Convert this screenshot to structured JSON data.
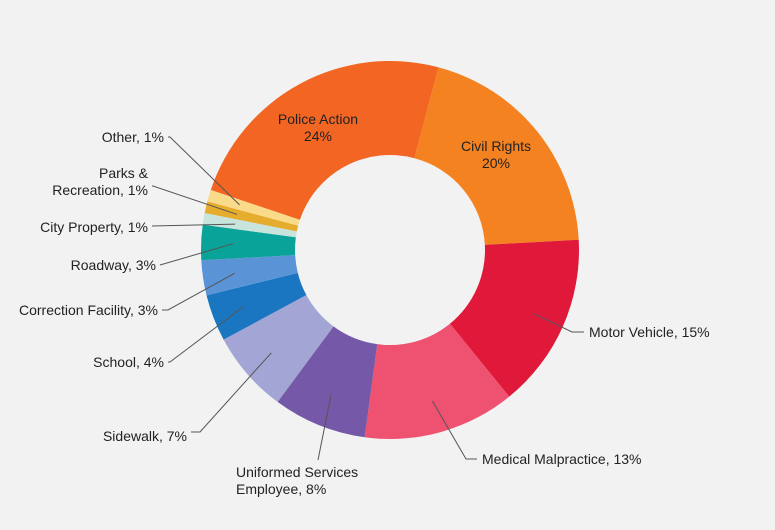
{
  "chart_data": {
    "type": "pie",
    "donut": true,
    "title": "",
    "slices": [
      {
        "label": "Police Action",
        "value": 24,
        "color": "#f26522",
        "label_inside": true
      },
      {
        "label": "Civil Rights",
        "value": 20,
        "color": "#f58220",
        "label_inside": true
      },
      {
        "label": "Motor Vehicle",
        "value": 15,
        "color": "#e0193a",
        "label_inside": false
      },
      {
        "label": "Medical Malpractice",
        "value": 13,
        "color": "#ef5170",
        "label_inside": false
      },
      {
        "label": "Uniformed Services Employee",
        "value": 8,
        "color": "#7558a8",
        "label_inside": false
      },
      {
        "label": "Sidewalk",
        "value": 7,
        "color": "#a3a6d4",
        "label_inside": false
      },
      {
        "label": "School",
        "value": 4,
        "color": "#1a76c0",
        "label_inside": false
      },
      {
        "label": "Correction Facility",
        "value": 3,
        "color": "#5b94d6",
        "label_inside": false
      },
      {
        "label": "Roadway",
        "value": 3,
        "color": "#0aa39a",
        "label_inside": false
      },
      {
        "label": "City Property",
        "value": 1,
        "color": "#c8e4dc",
        "label_inside": false
      },
      {
        "label": "Parks & Recreation",
        "value": 1,
        "color": "#e6ac2e",
        "label_inside": false
      },
      {
        "label": "Other",
        "value": 1,
        "color": "#fadb8a",
        "label_inside": false
      }
    ],
    "label_text": [
      [
        "Police Action",
        "24%"
      ],
      [
        "Civil Rights",
        "20%"
      ],
      [
        "Motor Vehicle, 15%"
      ],
      [
        "Medical Malpractice, 13%"
      ],
      [
        "Uniformed Services",
        "Employee, 8%"
      ],
      [
        "Sidewalk, 7%"
      ],
      [
        "School, 4%"
      ],
      [
        "Correction Facility, 3%"
      ],
      [
        "Roadway, 3%"
      ],
      [
        "City Property, 1%"
      ],
      [
        "Parks &",
        "Recreation, 1%"
      ],
      [
        "Other, 1%"
      ]
    ]
  }
}
